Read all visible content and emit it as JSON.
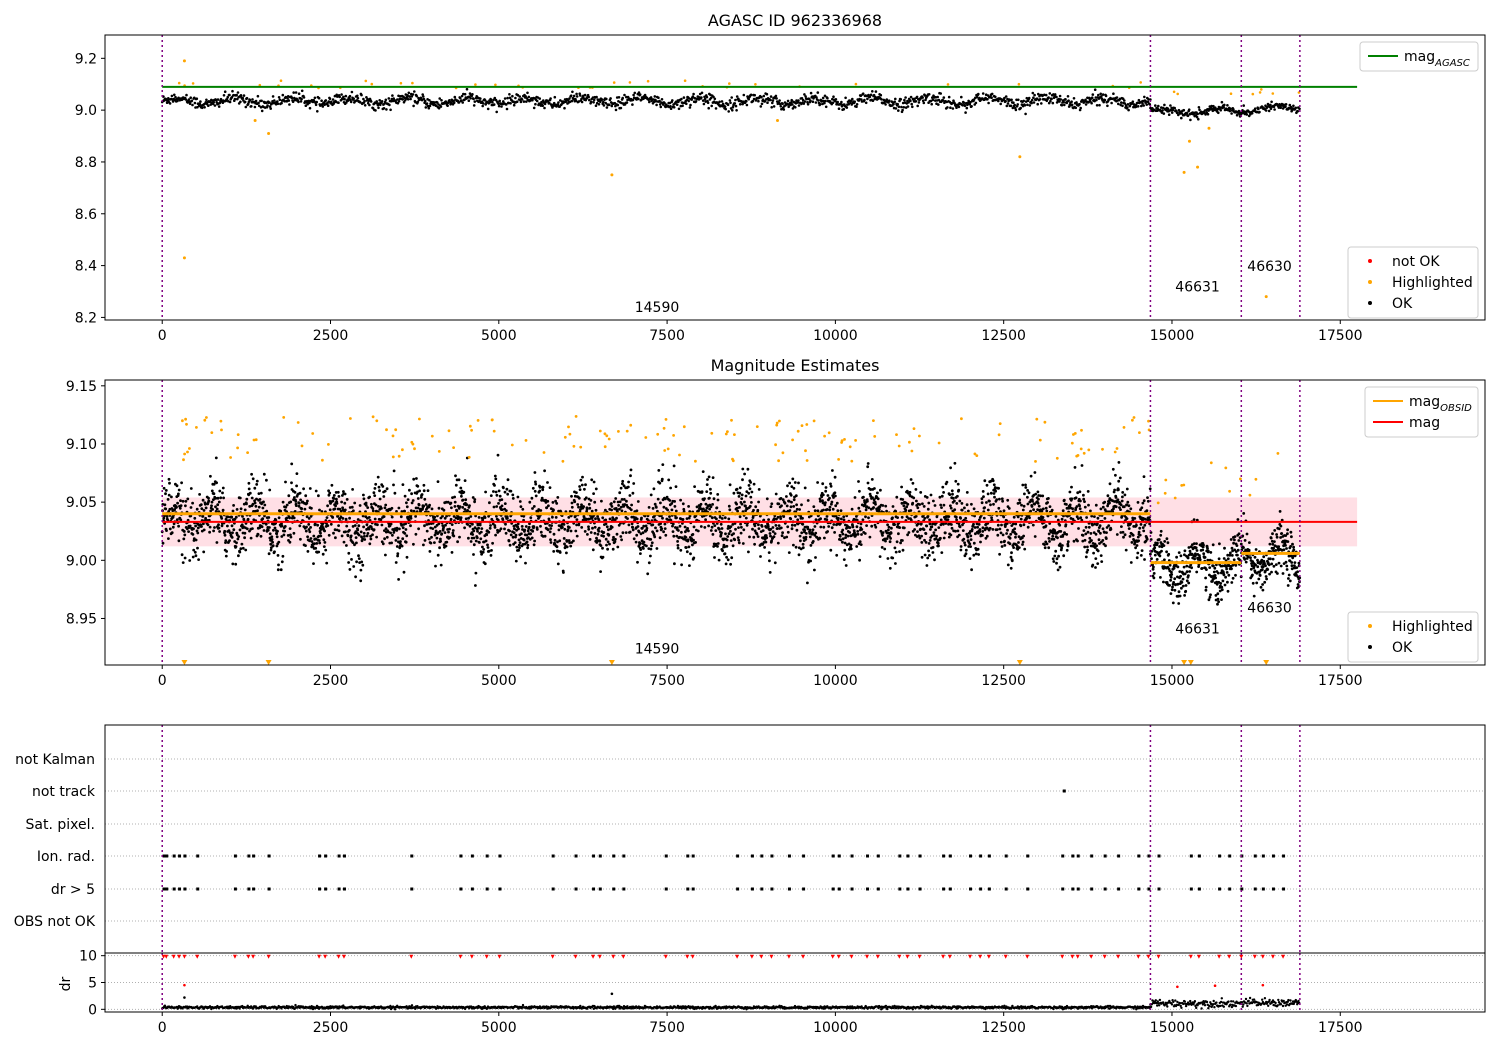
{
  "figure": {
    "colors": {
      "ok": "#000000",
      "highlighted": "#ffa500",
      "not_ok": "#ff0000",
      "agasc_line": "#008000",
      "obsid_line": "#ffa500",
      "mag_line": "#ff0000",
      "obs_boundary": "#800080",
      "band_fill": "#ffc0cb",
      "grid": "#b0b0b0"
    },
    "obs_boundaries": [
      0,
      14680,
      16030,
      16900
    ],
    "obs_labels": [
      {
        "text": "14590",
        "x": 7350,
        "panel": 0,
        "y": 8.22
      },
      {
        "text": "46631",
        "x": 15380,
        "panel": 0,
        "y": 8.3
      },
      {
        "text": "46630",
        "x": 16450,
        "panel": 0,
        "y": 8.38
      },
      {
        "text": "14590",
        "x": 7350,
        "panel": 1,
        "y": 8.92
      },
      {
        "text": "46631",
        "x": 15380,
        "panel": 1,
        "y": 8.937
      },
      {
        "text": "46630",
        "x": 16450,
        "panel": 1,
        "y": 8.955
      }
    ]
  },
  "chart_data": [
    {
      "type": "scatter",
      "title": "AGASC ID 962336968",
      "xlim": [
        -850,
        19650
      ],
      "ylim": [
        8.19,
        9.29
      ],
      "x_ticks": [
        "0",
        "2500",
        "5000",
        "7500",
        "10000",
        "12500",
        "15000",
        "17500"
      ],
      "x_tick_values": [
        0,
        2500,
        5000,
        7500,
        10000,
        12500,
        15000,
        17500
      ],
      "y_ticks": [
        "8.2",
        "8.4",
        "8.6",
        "8.8",
        "9.0",
        "9.2"
      ],
      "y_tick_values": [
        8.2,
        8.4,
        8.6,
        8.8,
        9.0,
        9.2
      ],
      "hlines": [
        {
          "name": "mag_AGASC",
          "y": 9.09,
          "x": [
            0,
            17750
          ],
          "color": "#008000"
        }
      ],
      "series_levels": [
        {
          "x0": 0,
          "x1": 14680,
          "center": 9.035,
          "spread": 0.025
        },
        {
          "x0": 14680,
          "x1": 16030,
          "center": 8.995,
          "spread": 0.018
        },
        {
          "x0": 16030,
          "x1": 16900,
          "center": 9.005,
          "spread": 0.015
        }
      ],
      "outliers": [
        {
          "x": 330,
          "y": 9.19
        },
        {
          "x": 330,
          "y": 8.43
        },
        {
          "x": 1580,
          "y": 8.91
        },
        {
          "x": 1380,
          "y": 8.96
        },
        {
          "x": 6680,
          "y": 8.75
        },
        {
          "x": 9140,
          "y": 8.96
        },
        {
          "x": 12740,
          "y": 8.82
        },
        {
          "x": 15180,
          "y": 8.76
        },
        {
          "x": 15260,
          "y": 8.88
        },
        {
          "x": 15380,
          "y": 8.78
        },
        {
          "x": 15550,
          "y": 8.93
        },
        {
          "x": 16400,
          "y": 8.28
        }
      ],
      "legend": {
        "position": "lower-right",
        "entries": [
          {
            "label": "not OK",
            "color": "#ff0000"
          },
          {
            "label": "Highlighted",
            "color": "#ffa500"
          },
          {
            "label": "OK",
            "color": "#000000"
          }
        ]
      },
      "legend_top": {
        "position": "top-right",
        "entries": [
          {
            "label": "mag",
            "sub": "AGASC",
            "color": "#008000"
          }
        ]
      }
    },
    {
      "type": "scatter",
      "title": "Magnitude Estimates",
      "xlim": [
        -850,
        19650
      ],
      "ylim": [
        8.91,
        9.155
      ],
      "x_ticks": [
        "0",
        "2500",
        "5000",
        "7500",
        "10000",
        "12500",
        "15000",
        "17500"
      ],
      "x_tick_values": [
        0,
        2500,
        5000,
        7500,
        10000,
        12500,
        15000,
        17500
      ],
      "y_ticks": [
        "8.95",
        "9.00",
        "9.05",
        "9.10",
        "9.15"
      ],
      "y_tick_values": [
        8.95,
        9.0,
        9.05,
        9.1,
        9.15
      ],
      "mag_line": {
        "y": 9.033,
        "x": [
          0,
          17750
        ],
        "band": [
          9.012,
          9.054
        ]
      },
      "obsid_mag": [
        {
          "x0": 0,
          "x1": 14680,
          "y": 9.04
        },
        {
          "x0": 14680,
          "x1": 16030,
          "y": 8.998
        },
        {
          "x0": 16030,
          "x1": 16900,
          "y": 9.006
        }
      ],
      "series_levels": [
        {
          "x0": 0,
          "x1": 14680,
          "center": 9.034,
          "spread": 0.025
        },
        {
          "x0": 14680,
          "x1": 16030,
          "center": 8.995,
          "spread": 0.02
        },
        {
          "x0": 16030,
          "x1": 16900,
          "center": 9.004,
          "spread": 0.018
        }
      ],
      "clipped_x": [
        330,
        1580,
        6680,
        12740,
        15180,
        15280,
        16400
      ],
      "legend": {
        "position": "lower-right",
        "entries": [
          {
            "label": "Highlighted",
            "color": "#ffa500"
          },
          {
            "label": "OK",
            "color": "#000000"
          }
        ]
      },
      "legend_top": {
        "position": "top-right",
        "entries": [
          {
            "label": "mag",
            "sub": "OBSID",
            "color": "#ffa500"
          },
          {
            "label": "mag",
            "sub": "",
            "color": "#ff0000"
          }
        ]
      }
    },
    {
      "type": "scatter",
      "xlim": [
        -850,
        19650
      ],
      "categories": [
        "OBS not OK",
        "dr > 5",
        "Ion. rad.",
        "Sat. pixel.",
        "not track",
        "not Kalman"
      ],
      "flag_x": [
        20,
        60,
        170,
        250,
        330,
        520,
        1080,
        1280,
        1350,
        1580,
        2330,
        2420,
        2620,
        2700,
        3700,
        4430,
        4600,
        4820,
        5010,
        5800,
        6140,
        6400,
        6500,
        6700,
        6850,
        7480,
        7800,
        7880,
        8540,
        8760,
        8900,
        9050,
        9310,
        9520,
        9960,
        10050,
        10240,
        10470,
        10630,
        10950,
        11070,
        11250,
        11600,
        11700,
        12000,
        12150,
        12280,
        12530,
        12850,
        13370,
        13520,
        13600,
        13800,
        14000,
        14200,
        14500,
        14650,
        14800,
        15280,
        15400,
        15700,
        15850,
        16030,
        16230,
        16350,
        16500,
        16650
      ],
      "not_track_x": [
        13400
      ],
      "dr_ylim": [
        -0.5,
        10.5
      ],
      "dr_ticks": [
        "0",
        "5",
        "10"
      ],
      "dr_tick_values": [
        0,
        5,
        10
      ],
      "ylabel": "dr",
      "x_ticks": [
        "0",
        "2500",
        "5000",
        "7500",
        "10000",
        "12500",
        "15000",
        "17500"
      ],
      "x_tick_values": [
        0,
        2500,
        5000,
        7500,
        10000,
        12500,
        15000,
        17500
      ]
    }
  ]
}
